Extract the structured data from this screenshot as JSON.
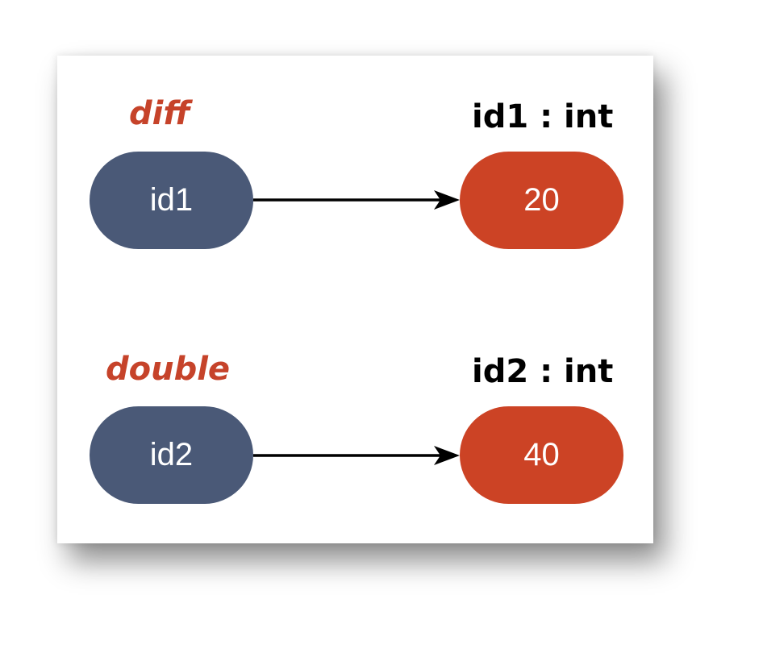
{
  "bindings": [
    {
      "variable": "diff",
      "identifier": "id1",
      "object_type": "id1 : int",
      "value": "20"
    },
    {
      "variable": "double",
      "identifier": "id2",
      "object_type": "id2 : int",
      "value": "40"
    }
  ],
  "colors": {
    "identifier_fill": "#4a5977",
    "value_fill": "#cc4325",
    "variable_text": "#c6432a",
    "arrow": "#000000"
  }
}
